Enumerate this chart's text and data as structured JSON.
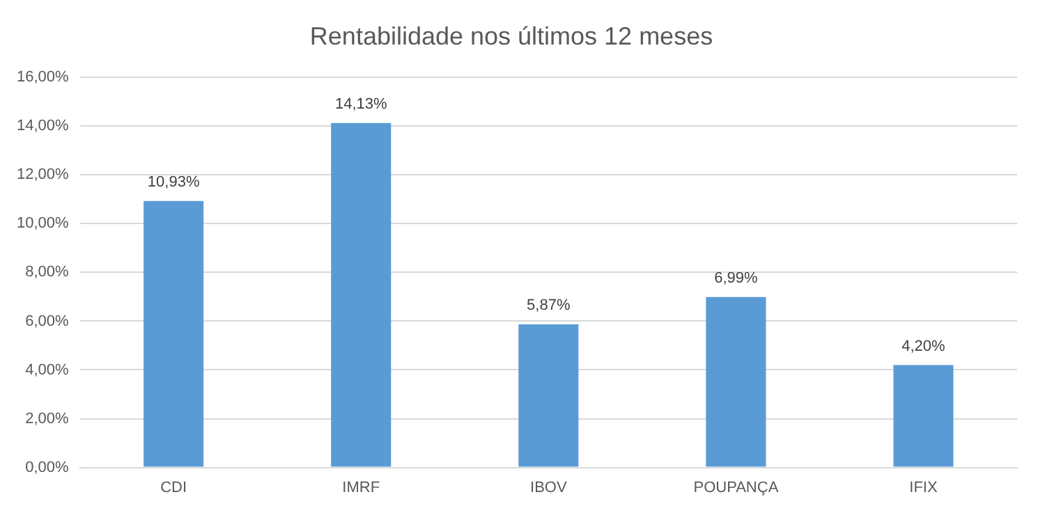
{
  "chart_data": {
    "type": "bar",
    "title": "Rentabilidade nos últimos 12 meses",
    "categories": [
      "CDI",
      "IMRF",
      "IBOV",
      "POUPANÇA",
      "IFIX"
    ],
    "values": [
      10.93,
      14.13,
      5.87,
      6.99,
      4.2
    ],
    "value_labels": [
      "10,93%",
      "14,13%",
      "5,87%",
      "6,99%",
      "4,20%"
    ],
    "color": "#5b9bd5",
    "ylim": [
      0,
      16
    ],
    "yticks": [
      {
        "value": 0,
        "label": "0,00%"
      },
      {
        "value": 2,
        "label": "2,00%"
      },
      {
        "value": 4,
        "label": "4,00%"
      },
      {
        "value": 6,
        "label": "6,00%"
      },
      {
        "value": 8,
        "label": "8,00%"
      },
      {
        "value": 10,
        "label": "10,00%"
      },
      {
        "value": 12,
        "label": "12,00%"
      },
      {
        "value": 14,
        "label": "14,00%"
      },
      {
        "value": 16,
        "label": "16,00%"
      }
    ],
    "grid": "y"
  }
}
